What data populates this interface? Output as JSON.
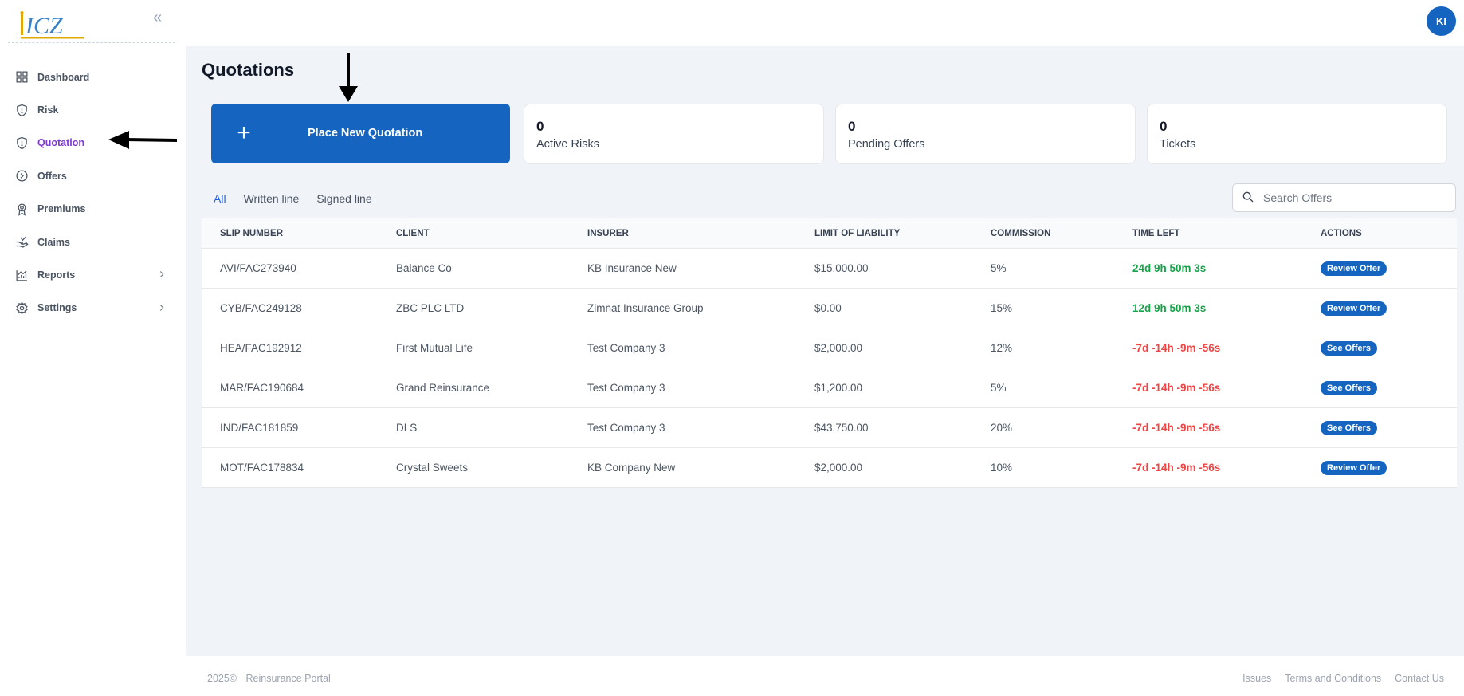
{
  "sidebar": {
    "logo_text": "ICZ",
    "items": [
      {
        "label": "Dashboard",
        "icon": "grid-icon"
      },
      {
        "label": "Risk",
        "icon": "shield-icon"
      },
      {
        "label": "Quotation",
        "icon": "shield-icon",
        "active": true
      },
      {
        "label": "Offers",
        "icon": "circle-arrow-icon"
      },
      {
        "label": "Premiums",
        "icon": "badge-icon"
      },
      {
        "label": "Claims",
        "icon": "hand-icon"
      },
      {
        "label": "Reports",
        "icon": "chart-icon",
        "has_submenu": true
      },
      {
        "label": "Settings",
        "icon": "gear-icon",
        "has_submenu": true
      }
    ]
  },
  "header": {
    "avatar_initials": "KI"
  },
  "page": {
    "title": "Quotations"
  },
  "cards": {
    "new_quotation": "Place New Quotation",
    "stats": [
      {
        "value": "0",
        "label": "Active Risks"
      },
      {
        "value": "0",
        "label": "Pending Offers"
      },
      {
        "value": "0",
        "label": "Tickets"
      }
    ]
  },
  "tabs": [
    "All",
    "Written line",
    "Signed line"
  ],
  "search": {
    "placeholder": "Search Offers"
  },
  "table": {
    "headers": [
      "SLIP NUMBER",
      "CLIENT",
      "INSURER",
      "LIMIT OF LIABILITY",
      "COMMISSION",
      "TIME LEFT",
      "ACTIONS"
    ],
    "rows": [
      {
        "slip": "AVI/FAC273940",
        "client": "Balance Co",
        "insurer": "KB Insurance New",
        "limit": "$15,000.00",
        "commission": "5%",
        "time_left": "24d 9h 50m 3s",
        "action": "Review Offer"
      },
      {
        "slip": "CYB/FAC249128",
        "client": "ZBC PLC LTD",
        "insurer": "Zimnat Insurance Group",
        "limit": "$0.00",
        "commission": "15%",
        "time_left": "12d 9h 50m 3s",
        "action": "Review Offer"
      },
      {
        "slip": "HEA/FAC192912",
        "client": "First Mutual Life",
        "insurer": "Test Company 3",
        "limit": "$2,000.00",
        "commission": "12%",
        "time_left": "-7d -14h -9m -56s",
        "action": "See Offers"
      },
      {
        "slip": "MAR/FAC190684",
        "client": "Grand Reinsurance",
        "insurer": "Test Company 3",
        "limit": "$1,200.00",
        "commission": "5%",
        "time_left": "-7d -14h -9m -56s",
        "action": "See Offers"
      },
      {
        "slip": "IND/FAC181859",
        "client": "DLS",
        "insurer": "Test Company 3",
        "limit": "$43,750.00",
        "commission": "20%",
        "time_left": "-7d -14h -9m -56s",
        "action": "See Offers"
      },
      {
        "slip": "MOT/FAC178834",
        "client": "Crystal Sweets",
        "insurer": "KB Company New",
        "limit": "$2,000.00",
        "commission": "10%",
        "time_left": "-7d -14h -9m -56s",
        "action": "Review Offer"
      }
    ]
  },
  "footer": {
    "copyright": "2025©",
    "portal": "Reinsurance Portal",
    "links": [
      "Issues",
      "Terms and Conditions",
      "Contact Us"
    ]
  },
  "colors": {
    "brand": "#1565c0",
    "active_nav": "#7e3bd0",
    "time_positive": "#16a34a",
    "time_negative": "#ef4444"
  }
}
